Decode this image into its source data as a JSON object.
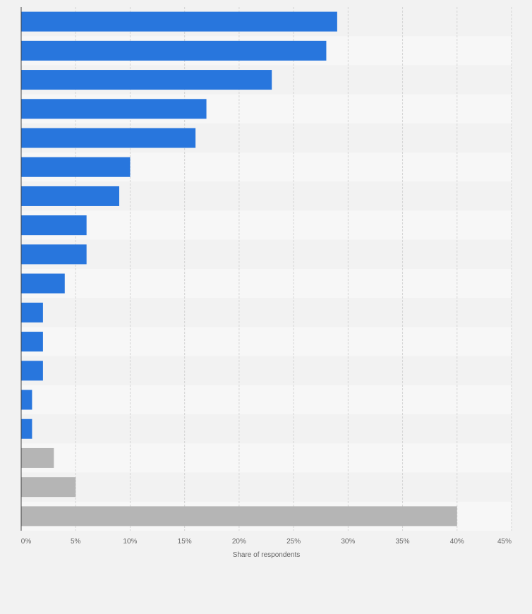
{
  "chart_data": {
    "type": "bar",
    "orientation": "horizontal",
    "title": "",
    "xlabel": "Share of respondents",
    "ylabel": "",
    "categories": [
      "",
      "",
      "",
      "",
      "",
      "",
      "",
      "",
      "",
      "",
      "",
      "",
      "",
      "",
      "",
      "",
      "",
      ""
    ],
    "values": [
      29,
      28,
      23,
      17,
      16,
      10,
      9,
      6,
      6,
      4,
      2,
      2,
      2,
      1,
      1,
      3,
      5,
      40
    ],
    "bar_colors": [
      "#2876dd",
      "#2876dd",
      "#2876dd",
      "#2876dd",
      "#2876dd",
      "#2876dd",
      "#2876dd",
      "#2876dd",
      "#2876dd",
      "#2876dd",
      "#2876dd",
      "#2876dd",
      "#2876dd",
      "#2876dd",
      "#2876dd",
      "#b5b5b5",
      "#b5b5b5",
      "#b5b5b5"
    ],
    "xlim": [
      0,
      45
    ],
    "x_ticks": [
      0,
      5,
      10,
      15,
      20,
      25,
      30,
      35,
      40,
      45
    ],
    "x_tick_labels": [
      "0%",
      "5%",
      "10%",
      "15%",
      "20%",
      "25%",
      "30%",
      "35%",
      "40%",
      "45%"
    ],
    "grid": true,
    "legend": "none",
    "colors": {
      "primary_bar": "#2876dd",
      "secondary_bar": "#b5b5b5",
      "background": "#f2f2f2",
      "row_band_light": "#f7f7f7",
      "row_band_dark": "#f2f2f2",
      "grid": "#d4d4d4",
      "axis": "#444444",
      "text": "#666666"
    }
  }
}
